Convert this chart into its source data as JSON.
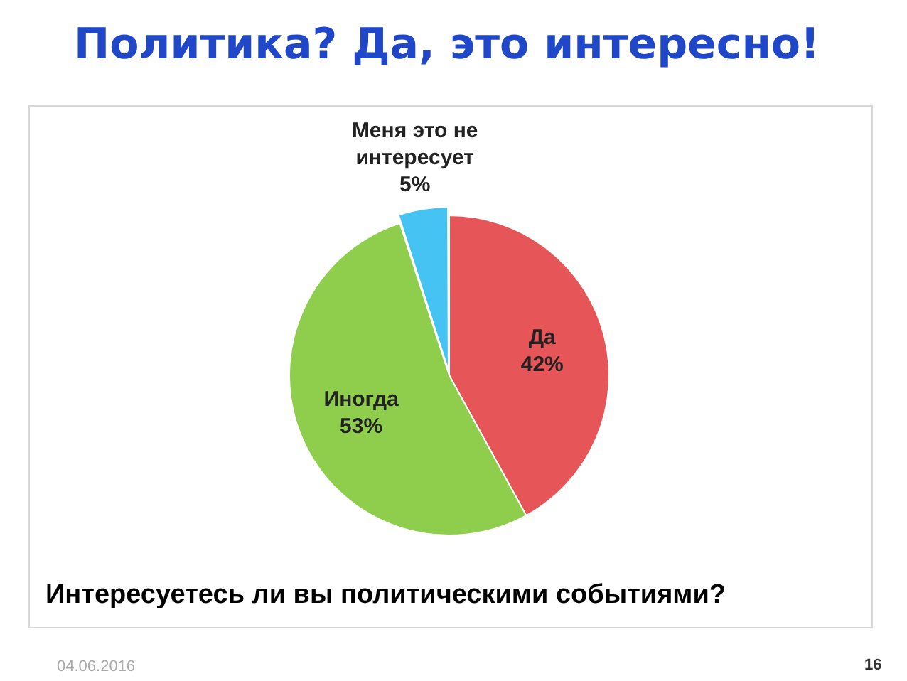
{
  "chart_data": {
    "type": "pie",
    "title": "Политика? Да, это интересно!",
    "categories": [
      "Да",
      "Иногда",
      "Меня это не интересует"
    ],
    "values": [
      42,
      53,
      5
    ],
    "colors": [
      "#e65557",
      "#8fce4c",
      "#45c4f4"
    ],
    "value_labels": [
      "42%",
      "53%",
      "5%"
    ],
    "legend": false,
    "annotations": [
      "Интересуетесь ли вы политическими событиями?",
      "04.06.2016",
      "16"
    ]
  }
}
